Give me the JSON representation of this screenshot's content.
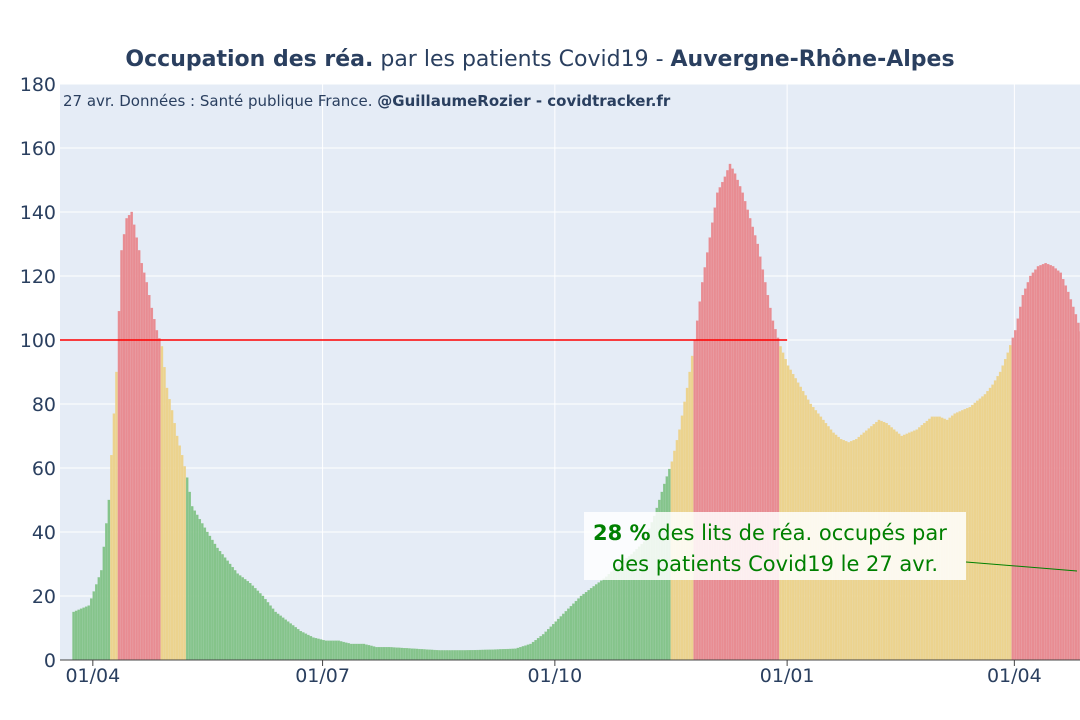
{
  "chart_data": {
    "type": "bar",
    "title_bold_1": "Occupation des réa.",
    "title_mid": " par les patients Covid19 - ",
    "title_bold_2": "Auvergne-Rhône-Alpes",
    "source_text": "27 avr. Données : Santé publique France. ",
    "source_bold": "@GuillaumeRozier - covidtracker.fr",
    "ylim": [
      0,
      180
    ],
    "yticks": [
      "0",
      "20",
      "40",
      "60",
      "80",
      "100",
      "120",
      "140",
      "160",
      "180"
    ],
    "xticks": [
      "01/04",
      "01/07",
      "01/10",
      "01/01",
      "01/04",
      "01/07",
      "01/10",
      "01/01",
      "01/04"
    ],
    "xlim": [
      "2020-03-19",
      "2021-04-27"
    ],
    "threshold": {
      "value": 100,
      "color": "#ff0000",
      "end_date": "2021-01-01"
    },
    "colors": {
      "green": "#85c48b",
      "orange": "#ecd38e",
      "red": "#e88c92",
      "plot_bg": "#e5ecf6",
      "annotation": "#008000"
    },
    "color_thresholds": {
      "orange_min": 60,
      "red_min": 100
    },
    "values": [
      [
        5,
        15
      ],
      [
        11,
        17
      ],
      [
        16,
        28
      ],
      [
        19,
        50
      ],
      [
        20,
        64
      ],
      [
        22,
        90
      ],
      [
        24,
        128
      ],
      [
        26,
        138
      ],
      [
        28,
        140
      ],
      [
        30,
        132
      ],
      [
        32,
        124
      ],
      [
        34,
        118
      ],
      [
        36,
        110
      ],
      [
        38,
        103
      ],
      [
        40,
        98
      ],
      [
        42,
        85
      ],
      [
        44,
        78
      ],
      [
        46,
        70
      ],
      [
        48,
        64
      ],
      [
        50,
        57
      ],
      [
        52,
        48
      ],
      [
        55,
        44
      ],
      [
        58,
        40
      ],
      [
        62,
        35
      ],
      [
        66,
        31
      ],
      [
        70,
        27
      ],
      [
        75,
        24
      ],
      [
        80,
        20
      ],
      [
        85,
        15
      ],
      [
        90,
        12
      ],
      [
        95,
        9
      ],
      [
        100,
        7
      ],
      [
        105,
        6
      ],
      [
        110,
        6
      ],
      [
        115,
        5
      ],
      [
        120,
        5
      ],
      [
        125,
        4
      ],
      [
        130,
        4
      ],
      [
        140,
        3.5
      ],
      [
        150,
        3
      ],
      [
        160,
        3
      ],
      [
        170,
        3.2
      ],
      [
        180,
        3.5
      ],
      [
        186,
        5
      ],
      [
        191,
        8
      ],
      [
        196,
        12
      ],
      [
        201,
        16
      ],
      [
        206,
        20
      ],
      [
        211,
        23
      ],
      [
        216,
        26
      ],
      [
        221,
        30
      ],
      [
        226,
        33
      ],
      [
        231,
        37
      ],
      [
        235,
        45
      ],
      [
        239,
        55
      ],
      [
        242,
        62
      ],
      [
        245,
        72
      ],
      [
        248,
        85
      ],
      [
        251,
        100
      ],
      [
        254,
        118
      ],
      [
        257,
        132
      ],
      [
        260,
        146
      ],
      [
        263,
        151
      ],
      [
        265,
        155
      ],
      [
        267,
        152
      ],
      [
        270,
        146
      ],
      [
        273,
        138
      ],
      [
        276,
        130
      ],
      [
        279,
        118
      ],
      [
        282,
        106
      ],
      [
        285,
        98
      ],
      [
        288,
        92
      ],
      [
        291,
        88
      ],
      [
        294,
        84
      ],
      [
        297,
        80
      ],
      [
        300,
        77
      ],
      [
        303,
        74
      ],
      [
        306,
        71
      ],
      [
        309,
        69
      ],
      [
        312,
        68
      ],
      [
        315,
        69
      ],
      [
        318,
        71
      ],
      [
        321,
        73
      ],
      [
        324,
        75
      ],
      [
        327,
        74
      ],
      [
        330,
        72
      ],
      [
        333,
        70
      ],
      [
        336,
        71
      ],
      [
        339,
        72
      ],
      [
        342,
        74
      ],
      [
        345,
        76
      ],
      [
        348,
        76
      ],
      [
        351,
        75
      ],
      [
        354,
        77
      ],
      [
        357,
        78
      ],
      [
        360,
        79
      ],
      [
        363,
        81
      ],
      [
        366,
        83
      ],
      [
        369,
        86
      ],
      [
        372,
        90
      ],
      [
        375,
        96
      ],
      [
        378,
        103
      ],
      [
        381,
        114
      ],
      [
        384,
        120
      ],
      [
        387,
        123
      ],
      [
        390,
        124
      ],
      [
        393,
        123
      ],
      [
        396,
        121
      ],
      [
        399,
        115
      ],
      [
        402,
        108
      ],
      [
        405,
        100
      ],
      [
        408,
        92
      ],
      [
        411,
        85
      ],
      [
        414,
        75
      ],
      [
        417,
        65
      ],
      [
        420,
        57
      ],
      [
        423,
        52
      ],
      [
        426,
        47
      ],
      [
        429,
        43
      ],
      [
        432,
        39
      ],
      [
        435,
        35
      ],
      [
        438,
        31
      ],
      [
        441,
        26
      ],
      [
        444,
        22
      ],
      [
        447,
        19
      ],
      [
        450,
        17
      ],
      [
        453,
        15
      ],
      [
        456,
        13
      ],
      [
        459,
        12
      ],
      [
        462,
        11
      ],
      [
        465,
        10.5
      ],
      [
        468,
        12
      ],
      [
        471,
        16
      ],
      [
        474,
        21
      ],
      [
        477,
        26
      ],
      [
        480,
        31
      ],
      [
        483,
        35
      ],
      [
        486,
        38
      ],
      [
        489,
        38
      ],
      [
        492,
        36
      ],
      [
        495,
        34
      ],
      [
        498,
        31
      ],
      [
        501,
        29
      ],
      [
        504,
        27
      ],
      [
        507,
        25
      ],
      [
        510,
        22
      ],
      [
        513,
        20
      ],
      [
        516,
        18
      ],
      [
        519,
        17
      ],
      [
        522,
        17
      ],
      [
        525,
        16.5
      ],
      [
        528,
        16.5
      ],
      [
        531,
        16
      ],
      [
        534,
        15
      ],
      [
        537,
        14
      ],
      [
        540,
        14
      ],
      [
        543,
        15
      ],
      [
        546,
        17
      ],
      [
        549,
        21
      ],
      [
        552,
        26
      ],
      [
        555,
        32
      ],
      [
        558,
        42
      ],
      [
        561,
        52
      ],
      [
        564,
        62
      ],
      [
        567,
        70
      ],
      [
        570,
        77
      ],
      [
        573,
        83
      ],
      [
        576,
        87
      ],
      [
        579,
        90
      ],
      [
        582,
        91
      ],
      [
        585,
        94
      ],
      [
        587,
        95
      ],
      [
        590,
        92
      ],
      [
        593,
        88
      ],
      [
        596,
        84
      ],
      [
        599,
        81
      ],
      [
        602,
        79
      ],
      [
        605,
        78
      ],
      [
        608,
        76
      ],
      [
        611,
        72
      ],
      [
        614,
        64
      ],
      [
        617,
        57
      ],
      [
        620,
        54
      ],
      [
        623,
        49
      ],
      [
        626,
        44
      ],
      [
        629,
        40
      ],
      [
        632,
        37
      ],
      [
        635,
        33
      ],
      [
        638,
        30
      ],
      [
        641,
        27
      ],
      [
        644,
        26
      ],
      [
        647,
        25
      ],
      [
        650,
        26
      ],
      [
        653,
        28
      ],
      [
        656,
        24
      ],
      [
        659,
        25
      ],
      [
        662,
        24
      ],
      [
        665,
        28
      ],
      [
        668,
        31
      ]
    ],
    "annotation": {
      "bold": "28  %",
      "line1_rest": " des lits de réa. occupés par",
      "line2": "des patients Covid19 le 27 avr."
    }
  }
}
